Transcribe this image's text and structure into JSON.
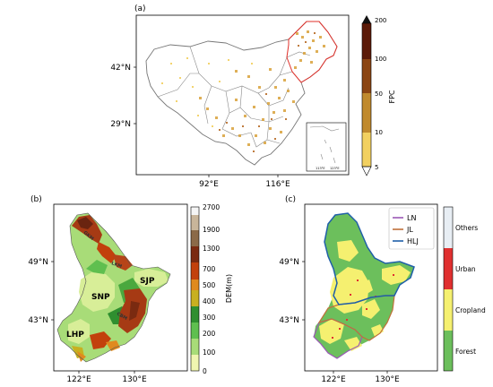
{
  "panel_a": {
    "label": "(a)",
    "lat_ticks": [
      "42°N",
      "29°N"
    ],
    "lon_ticks": [
      "92°E",
      "116°E"
    ],
    "colorbar": {
      "title": "FPC",
      "ticks": [
        "200",
        "100",
        "50",
        "10",
        "5"
      ],
      "colors": [
        "#5b1a08",
        "#8b4513",
        "#b5651d",
        "#d9a23a",
        "#f2d060"
      ]
    },
    "inset": {
      "lon_ticks": [
        "113°E",
        "123°E"
      ]
    }
  },
  "panel_b": {
    "label": "(b)",
    "lat_ticks": [
      "49°N",
      "43°N"
    ],
    "lon_ticks": [
      "122°E",
      "130°E"
    ],
    "region_labels": [
      "GKM",
      "LKM",
      "SNP",
      "SJP",
      "CBM",
      "LHP"
    ],
    "colorbar": {
      "title": "DEM(m)",
      "ticks": [
        "2700",
        "1900",
        "1300",
        "700",
        "500",
        "400",
        "300",
        "200",
        "100",
        "0"
      ],
      "colors": [
        "#f5f5f5",
        "#c8b59a",
        "#8b6a48",
        "#7a2a10",
        "#c2410c",
        "#e08a1e",
        "#c8b020",
        "#2f8f2f",
        "#5fbf4f",
        "#a8dc78",
        "#f0f5b0"
      ]
    }
  },
  "panel_c": {
    "label": "(c)",
    "lat_ticks": [
      "49°N",
      "43°N"
    ],
    "lon_ticks": [
      "122°E",
      "130°E"
    ],
    "legend": [
      {
        "label": "LN",
        "color": "#9b59b6"
      },
      {
        "label": "JL",
        "color": "#c0703a"
      },
      {
        "label": "HLJ",
        "color": "#1f5fa8"
      }
    ],
    "landcover": {
      "classes": [
        "Others",
        "Urban",
        "Cropland",
        "Forest"
      ],
      "colors": [
        "#e8eef4",
        "#e03030",
        "#f5f070",
        "#6cbf5c"
      ]
    }
  }
}
